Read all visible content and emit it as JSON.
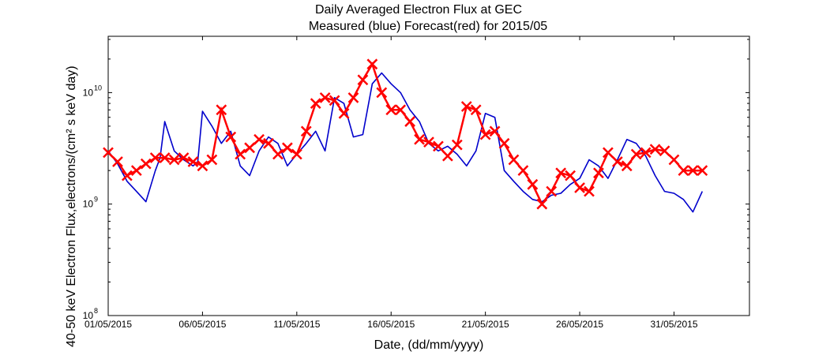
{
  "chart_data": {
    "type": "line",
    "title": "Daily Averaged Electron Flux at GEC",
    "subtitle": "Measured (blue) Forecast(red) for 2015/05",
    "xlabel": "Date, (dd/mm/yyyy)",
    "ylabel": "40-50 keV Electron Flux,electrons/(cm² s keV day)",
    "y_scale": "log",
    "xlim": [
      "2015-05-01",
      "2015-06-04"
    ],
    "ylim": [
      100000000,
      32000000000
    ],
    "x_ticks": [
      "01/05/2015",
      "06/05/2015",
      "11/05/2015",
      "16/05/2015",
      "21/05/2015",
      "26/05/2015",
      "31/05/2015"
    ],
    "y_ticks": [
      {
        "value": 100000000,
        "label": "10",
        "exp": "8"
      },
      {
        "value": 1000000000,
        "label": "10",
        "exp": "9"
      },
      {
        "value": 10000000000,
        "label": "10",
        "exp": "10"
      }
    ],
    "grid": false,
    "series": [
      {
        "name": "Measured",
        "color": "#0000cc",
        "marker": "none",
        "x": [
          "2015-05-01T00:00",
          "2015-05-01T12:00",
          "2015-05-02T00:00",
          "2015-05-02T12:00",
          "2015-05-03T00:00",
          "2015-05-03T12:00",
          "2015-05-03T18:00",
          "2015-05-04T00:00",
          "2015-05-04T12:00",
          "2015-05-05T00:00",
          "2015-05-05T12:00",
          "2015-05-05T18:00",
          "2015-05-06T00:00",
          "2015-05-06T12:00",
          "2015-05-07T00:00",
          "2015-05-07T12:00",
          "2015-05-08T00:00",
          "2015-05-08T12:00",
          "2015-05-09T00:00",
          "2015-05-09T12:00",
          "2015-05-10T00:00",
          "2015-05-10T12:00",
          "2015-05-11T00:00",
          "2015-05-11T12:00",
          "2015-05-12T00:00",
          "2015-05-12T12:00",
          "2015-05-13T00:00",
          "2015-05-13T12:00",
          "2015-05-14T00:00",
          "2015-05-14T12:00",
          "2015-05-15T00:00",
          "2015-05-15T12:00",
          "2015-05-16T00:00",
          "2015-05-16T12:00",
          "2015-05-17T00:00",
          "2015-05-17T12:00",
          "2015-05-18T00:00",
          "2015-05-18T12:00",
          "2015-05-19T00:00",
          "2015-05-19T12:00",
          "2015-05-20T00:00",
          "2015-05-20T12:00",
          "2015-05-21T00:00",
          "2015-05-21T12:00",
          "2015-05-22T00:00",
          "2015-05-22T12:00",
          "2015-05-23T00:00",
          "2015-05-23T12:00",
          "2015-05-24T00:00",
          "2015-05-24T12:00",
          "2015-05-25T00:00",
          "2015-05-25T12:00",
          "2015-05-26T00:00",
          "2015-05-26T12:00",
          "2015-05-27T00:00",
          "2015-05-27T12:00",
          "2015-05-28T00:00",
          "2015-05-28T12:00",
          "2015-05-29T00:00",
          "2015-05-29T12:00",
          "2015-05-30T00:00",
          "2015-05-30T12:00",
          "2015-05-31T00:00",
          "2015-05-31T12:00",
          "2015-06-01T00:00",
          "2015-06-01T12:00"
        ],
        "y": [
          3000000000,
          2300000000,
          1600000000,
          1300000000,
          1050000000,
          2000000000,
          2600000000,
          5500000000,
          3000000000,
          2500000000,
          2200000000,
          2400000000,
          6800000000,
          5000000000,
          3500000000,
          4500000000,
          2200000000,
          1800000000,
          3000000000,
          4000000000,
          3500000000,
          2200000000,
          2800000000,
          3500000000,
          4500000000,
          3000000000,
          9000000000,
          8000000000,
          4000000000,
          4200000000,
          12000000000,
          15000000000,
          12000000000,
          10000000000,
          7000000000,
          5500000000,
          3500000000,
          3000000000,
          3300000000,
          2800000000,
          2200000000,
          3000000000,
          6500000000,
          6000000000,
          2000000000,
          1600000000,
          1300000000,
          1100000000,
          1050000000,
          1200000000,
          1250000000,
          1500000000,
          1700000000,
          2500000000,
          2200000000,
          1700000000,
          2500000000,
          3800000000,
          3500000000,
          2700000000,
          1800000000,
          1300000000,
          1250000000,
          1100000000,
          850000000,
          1300000000
        ]
      },
      {
        "name": "Forecast",
        "color": "#ff0000",
        "marker": "x",
        "x": [
          "2015-05-01T00:00",
          "2015-05-01T12:00",
          "2015-05-02T00:00",
          "2015-05-02T12:00",
          "2015-05-03T00:00",
          "2015-05-03T12:00",
          "2015-05-04T00:00",
          "2015-05-04T12:00",
          "2015-05-05T00:00",
          "2015-05-05T12:00",
          "2015-05-06T00:00",
          "2015-05-06T12:00",
          "2015-05-07T00:00",
          "2015-05-07T12:00",
          "2015-05-08T00:00",
          "2015-05-08T12:00",
          "2015-05-09T00:00",
          "2015-05-09T12:00",
          "2015-05-10T00:00",
          "2015-05-10T12:00",
          "2015-05-11T00:00",
          "2015-05-11T12:00",
          "2015-05-12T00:00",
          "2015-05-12T12:00",
          "2015-05-13T00:00",
          "2015-05-13T12:00",
          "2015-05-14T00:00",
          "2015-05-14T12:00",
          "2015-05-15T00:00",
          "2015-05-15T12:00",
          "2015-05-16T00:00",
          "2015-05-16T12:00",
          "2015-05-17T00:00",
          "2015-05-17T12:00",
          "2015-05-18T00:00",
          "2015-05-18T12:00",
          "2015-05-19T00:00",
          "2015-05-19T12:00",
          "2015-05-20T00:00",
          "2015-05-20T12:00",
          "2015-05-21T00:00",
          "2015-05-21T12:00",
          "2015-05-22T00:00",
          "2015-05-22T12:00",
          "2015-05-23T00:00",
          "2015-05-23T12:00",
          "2015-05-24T00:00",
          "2015-05-24T12:00",
          "2015-05-25T00:00",
          "2015-05-25T12:00",
          "2015-05-26T00:00",
          "2015-05-26T12:00",
          "2015-05-27T00:00",
          "2015-05-27T12:00",
          "2015-05-28T00:00",
          "2015-05-28T12:00",
          "2015-05-29T00:00",
          "2015-05-29T12:00",
          "2015-05-30T00:00",
          "2015-05-30T12:00",
          "2015-05-31T00:00",
          "2015-05-31T12:00",
          "2015-06-01T00:00",
          "2015-06-01T12:00"
        ],
        "y": [
          2900000000,
          2400000000,
          1800000000,
          2000000000,
          2300000000,
          2600000000,
          2600000000,
          2500000000,
          2600000000,
          2400000000,
          2200000000,
          2500000000,
          7000000000,
          4000000000,
          2800000000,
          3200000000,
          3800000000,
          3500000000,
          2800000000,
          3200000000,
          2800000000,
          4500000000,
          8000000000,
          9000000000,
          8500000000,
          6500000000,
          9000000000,
          13000000000,
          18000000000,
          10000000000,
          7000000000,
          7000000000,
          5500000000,
          3800000000,
          3600000000,
          3300000000,
          2700000000,
          3400000000,
          7500000000,
          7000000000,
          4200000000,
          4500000000,
          3500000000,
          2500000000,
          2000000000,
          1500000000,
          1000000000,
          1300000000,
          1900000000,
          1800000000,
          1400000000,
          1300000000,
          1900000000,
          2900000000,
          2400000000,
          2200000000,
          2800000000,
          2900000000,
          3100000000,
          3000000000,
          2500000000,
          2000000000,
          2000000000,
          2000000000
        ]
      }
    ]
  }
}
